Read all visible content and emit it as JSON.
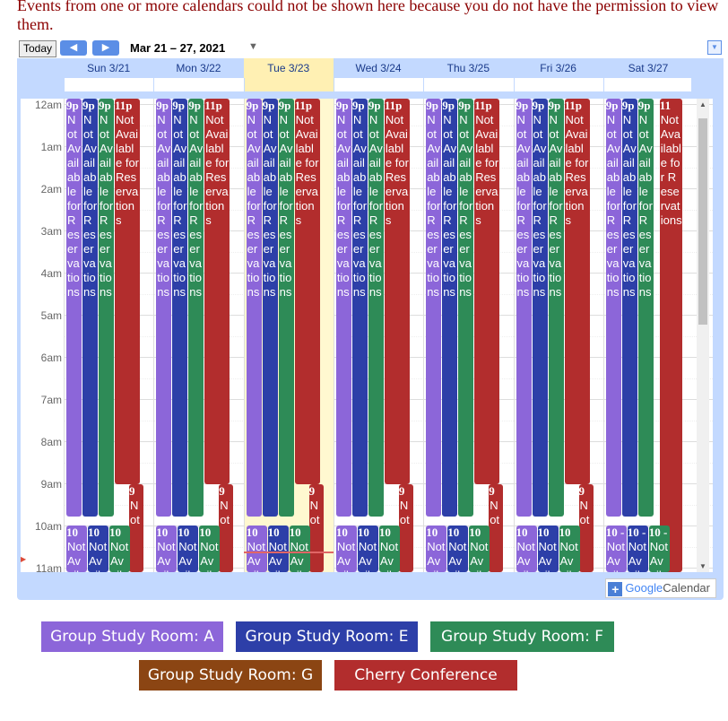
{
  "notice": "Events from one or more calendars could not be shown here because you do not have the permission to view them.",
  "toolbar": {
    "today_label": "Today",
    "prev_icon": "◀",
    "next_icon": "▶",
    "date_range": "Mar 21 – 27, 2021",
    "range_caret": "▼",
    "menu_icon": "▼"
  },
  "days": [
    {
      "label": "Sun 3/21",
      "today": false
    },
    {
      "label": "Mon 3/22",
      "today": false
    },
    {
      "label": "Tue 3/23",
      "today": true
    },
    {
      "label": "Wed 3/24",
      "today": false
    },
    {
      "label": "Thu 3/25",
      "today": false
    },
    {
      "label": "Fri 3/26",
      "today": false
    },
    {
      "label": "Sat 3/27",
      "today": false
    }
  ],
  "hours": [
    "12am",
    "1am",
    "2am",
    "3am",
    "4am",
    "5am",
    "6am",
    "7am",
    "8am",
    "9am",
    "10am",
    "11am"
  ],
  "calendars": [
    {
      "name": "Group Study Room: A",
      "color": "#8c66d9"
    },
    {
      "name": "Group Study Room: E",
      "color": "#2d3fa8"
    },
    {
      "name": "Group Study Room: F",
      "color": "#2e8b57"
    },
    {
      "name": "Group Study Room: G",
      "color": "#8b4513"
    },
    {
      "name": "Cherry Conference Room",
      "color": "#b22d2d"
    }
  ],
  "events": {
    "early_title": "Not Available for Reservations",
    "early_time_weekday": [
      "9p",
      "9p",
      "9p",
      "11p"
    ],
    "early_time_sat": [
      "9p",
      "9p",
      "9p",
      "11"
    ],
    "late_cherry_time": "9",
    "late_cherry_title": "Not",
    "late_cherry_title_sat": "Not Available for Reservations",
    "late_room_time": "10",
    "late_room_time_sat": "10 -",
    "late_room_title": "Not Available",
    "late_cherry_10_title": "Not Av"
  },
  "gcal_badge": {
    "plus": "+",
    "brand": "Google",
    "suffix": "Calendar"
  },
  "legend": [
    "Group Study Room: A",
    "Group Study Room: E",
    "Group Study Room: F",
    "Group Study Room: G",
    "Cherry Conference Room"
  ]
}
